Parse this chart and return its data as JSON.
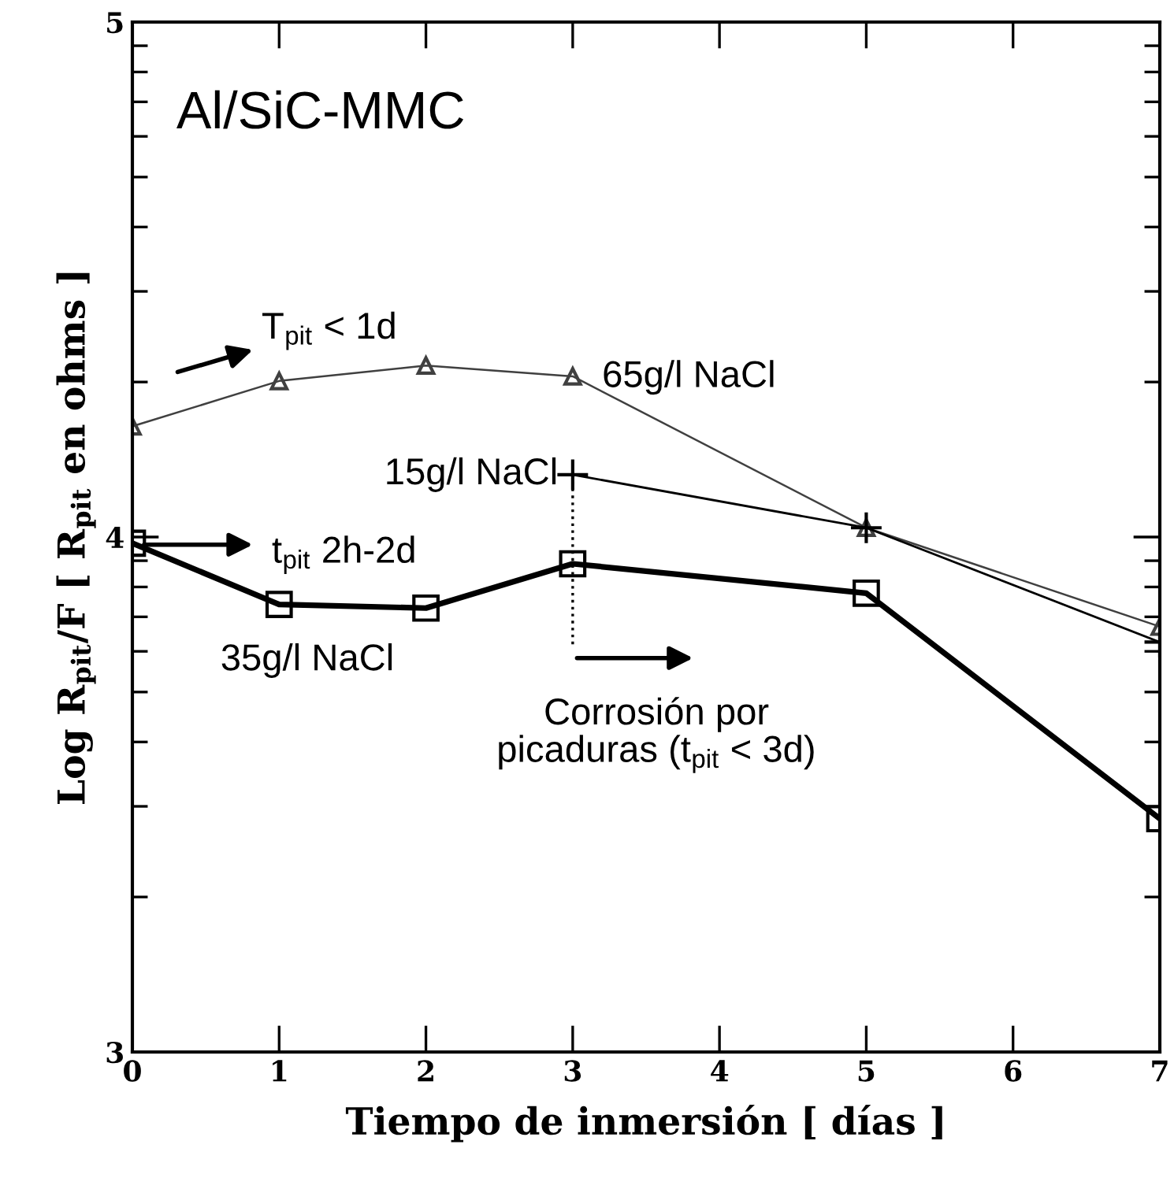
{
  "chart_data": {
    "type": "line",
    "title": "Al/SiC-MMC",
    "xlabel": "Tiempo de inmersión [ días ]",
    "ylabel": "Log R$_{pit}$/F [ R$_{pit}$ en ohms ]",
    "xlim": [
      0,
      7
    ],
    "xticks": [
      0,
      1,
      2,
      3,
      4,
      5,
      6,
      7
    ],
    "ylim": [
      3,
      5
    ],
    "yticks": [
      3,
      {
        "value": 3.301,
        "label": null
      },
      {
        "value": 3.477,
        "label": null
      },
      {
        "value": 3.602,
        "label": null
      },
      {
        "value": 3.699,
        "label": null
      },
      {
        "value": 3.778,
        "label": null
      },
      {
        "value": 3.845,
        "label": null
      },
      {
        "value": 3.903,
        "label": null
      },
      {
        "value": 3.954,
        "label": null
      },
      4,
      {
        "value": 4.301,
        "label": null
      },
      {
        "value": 4.477,
        "label": null
      },
      {
        "value": 4.602,
        "label": null
      },
      {
        "value": 4.699,
        "label": null
      },
      {
        "value": 4.778,
        "label": null
      },
      {
        "value": 4.845,
        "label": null
      },
      {
        "value": 4.903,
        "label": null
      },
      {
        "value": 4.954,
        "label": null
      },
      5
    ],
    "grid": false,
    "legend": false,
    "series": [
      {
        "name": "65g/l NaCl",
        "color": "#404040",
        "marker": "triangle",
        "x": [
          0,
          1,
          2,
          3,
          5,
          7
        ],
        "values": [
          4.215,
          4.303,
          4.333,
          4.312,
          4.018,
          3.826
        ]
      },
      {
        "name": "15g/l NaCl",
        "color": "#000000",
        "marker": "cross",
        "x": [
          3,
          5,
          7
        ],
        "values": [
          4.121,
          4.018,
          3.796
        ]
      },
      {
        "name": "35g/l NaCl",
        "color": "#000000",
        "marker": "square",
        "x": [
          0,
          1,
          2,
          3,
          5,
          7
        ],
        "values": [
          3.988,
          3.869,
          3.862,
          3.948,
          3.891,
          3.453
        ]
      },
      {
        "color": "#000000",
        "marker": "none",
        "line_style": "dotted",
        "x": [
          3,
          3
        ],
        "values": [
          4.121,
          3.789
        ]
      }
    ],
    "annotations": [
      "T$_{pit}$ < 1d",
      "t$_{pit}$ 2h-2d",
      "Corrosión por\npicaduras (t$_{pit}$ < 3d)"
    ]
  }
}
